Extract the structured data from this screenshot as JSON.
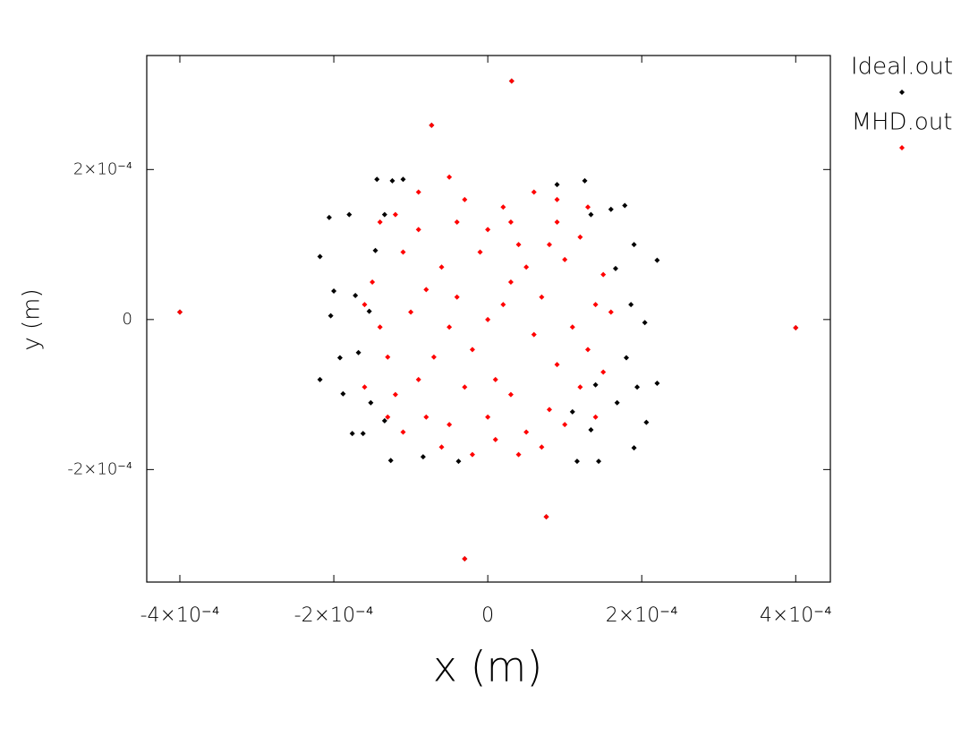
{
  "chart_data": {
    "type": "scatter",
    "xlabel": "x (m)",
    "ylabel": "y (m)",
    "xlim": [
      -0.000443,
      0.000445
    ],
    "ylim": [
      -0.00035,
      0.000352
    ],
    "xticks": [
      {
        "value": -0.0004,
        "label": "-4×10⁻⁴"
      },
      {
        "value": -0.0002,
        "label": "-2×10⁻⁴"
      },
      0,
      {
        "value": 0.0002,
        "label": "2×10⁻⁴"
      },
      {
        "value": 0.0004,
        "label": "4×10⁻⁴"
      }
    ],
    "yticks": [
      {
        "value": -0.0002,
        "label": "-2×10⁻⁴"
      },
      0,
      {
        "value": 0.0002,
        "label": "2×10⁻⁴"
      }
    ],
    "legend": "outside-top-right",
    "series": [
      {
        "name": "Ideal.out",
        "color": "#000000",
        "x": [
          -0.000206,
          -0.000218,
          -0.0002,
          -0.000204,
          -0.000218,
          -0.000188,
          -0.000176,
          -0.000162,
          -0.000126,
          -8.4e-05,
          -3.8e-05,
          0.000116,
          0.000144,
          0.00019,
          0.000206,
          0.00022,
          0.000194,
          0.000204,
          0.00022,
          0.00019,
          0.000178,
          0.00016,
          0.000126,
          9e-05,
          -0.000124,
          -0.000144,
          -0.00018,
          -0.000154,
          -0.000168,
          -0.000192,
          -0.000172,
          -0.000146,
          0.00018,
          0.000186,
          0.000166,
          0.000168,
          0.00014,
          -0.000152,
          -0.000134,
          0.000134,
          0.00011,
          -0.000134,
          -0.00011,
          0.000134,
          -0.0004,
          0.0004,
          3.1e-05,
          -7.3e-05,
          -3e-05,
          7.6e-05
        ],
        "y": [
          0.000136,
          8.4e-05,
          3.8e-05,
          5e-06,
          -8e-05,
          -9.9e-05,
          -0.000152,
          -0.000152,
          -0.000188,
          -0.000183,
          -0.000189,
          -0.000189,
          -0.000189,
          -0.000171,
          -0.000137,
          -8.5e-05,
          -9e-05,
          -4e-06,
          7.9e-05,
          0.0001,
          0.000152,
          0.000147,
          0.000185,
          0.00018,
          0.000185,
          0.000187,
          0.00014,
          1.1e-05,
          -4.4e-05,
          -5.1e-05,
          3.2e-05,
          9.2e-05,
          -5.1e-05,
          2e-05,
          6.8e-05,
          -0.000111,
          -8.7e-05,
          -0.000111,
          -0.000135,
          -0.000147,
          -0.000123,
          0.00014,
          0.000187,
          0.00014,
          1e-05,
          -1.1e-05,
          0.000318,
          0.000259,
          -0.000319,
          -0.000263
        ]
      },
      {
        "name": "MHD.out",
        "color": "#ff0000",
        "x": [
          0,
          3e-05,
          -4e-05,
          6e-05,
          -7e-05,
          0.0001,
          -0.00011,
          0.00012,
          -0.00012,
          2e-05,
          -3e-05,
          5e-05,
          -5e-05,
          0.00014,
          -0.00014,
          9e-05,
          -9e-05,
          8e-05,
          -8e-05,
          1e-05,
          -1e-05,
          0.00015,
          -0.00015,
          0.00013,
          -0.00013,
          4e-05,
          -6e-05,
          7e-05,
          -2e-05,
          3e-05,
          -0.0001,
          0.00011,
          6e-05,
          -5e-05,
          -2e-05,
          4e-05,
          0.00012,
          -0.00012,
          0.0001,
          -0.00011,
          0,
          0,
          9e-05,
          -9e-05,
          5e-05,
          -3e-05,
          0.00015,
          -0.00016,
          -0.00016,
          0.00016,
          2e-05,
          -5e-05,
          8e-05,
          -8e-05,
          1e-05,
          -9e-05,
          9e-05,
          -4e-05,
          3e-05,
          -6e-05,
          7e-05,
          0.00013,
          -0.00014,
          0.00014,
          -0.00013,
          -0.0004,
          0.0004,
          3.1e-05,
          -7.3e-05,
          -3e-05,
          7.6e-05
        ],
        "y": [
          0,
          5e-05,
          3e-05,
          -2e-05,
          -5e-05,
          8e-05,
          9e-05,
          -9e-05,
          -0.0001,
          0.00015,
          0.00016,
          -0.00015,
          -0.00014,
          2e-05,
          -1e-05,
          0.00013,
          0.00012,
          -0.00012,
          -0.00013,
          -8e-05,
          9e-05,
          6e-05,
          5e-05,
          -4e-05,
          -5e-05,
          0.0001,
          7e-05,
          3e-05,
          -4e-05,
          -0.0001,
          1e-05,
          -1e-05,
          0.00017,
          0.00019,
          -0.00018,
          -0.00018,
          0.00011,
          0.00014,
          -0.00014,
          -0.00015,
          0.00012,
          -0.00013,
          -6e-05,
          -8e-05,
          7e-05,
          -9e-05,
          -7e-05,
          -9e-05,
          2e-05,
          1e-05,
          2e-05,
          -1e-05,
          0.0001,
          4e-05,
          -0.00016,
          0.00017,
          0.00016,
          0.00013,
          0.00013,
          -0.00017,
          -0.00017,
          0.00015,
          0.00013,
          -0.00013,
          -0.00013,
          1e-05,
          -1.1e-05,
          0.000318,
          0.000259,
          -0.000319,
          -0.000263
        ]
      }
    ]
  }
}
